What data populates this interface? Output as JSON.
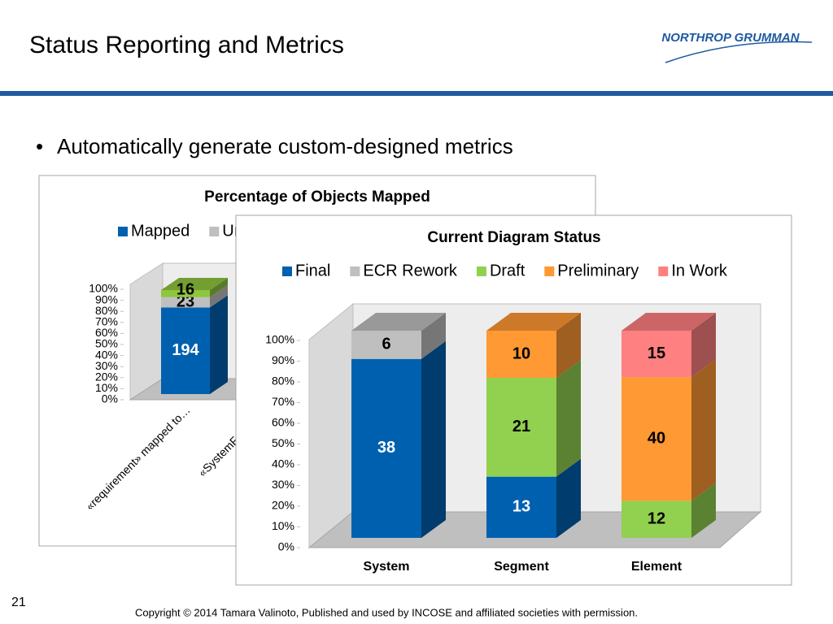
{
  "slide": {
    "title": "Status Reporting and Metrics",
    "bullet": "Automatically generate custom-designed metrics",
    "logo": "NORTHROP GRUMMAN",
    "page_number": "21",
    "footer": "Copyright © 2014 Tamara Valinoto, Published and used by INCOSE and affiliated societies with permission."
  },
  "chart_data": [
    {
      "type": "bar",
      "stacking": "percent",
      "three_d": true,
      "title": "Percentage of Objects Mapped",
      "categories": [
        "«requirement» mapped to…",
        "«SystemFunction»"
      ],
      "series": [
        {
          "name": "Mapped",
          "color": "#0060b0",
          "values": [
            194,
            null
          ]
        },
        {
          "name": "Unmapped",
          "color": "#bfbfbf",
          "values": [
            23,
            null
          ]
        },
        {
          "color": "#8ec63f",
          "values": [
            16,
            null
          ]
        }
      ],
      "ylim": [
        0,
        100
      ],
      "yticks": [
        {
          "value": 0,
          "label": "0%"
        },
        {
          "value": 10,
          "label": "10%"
        },
        {
          "value": 20,
          "label": "20%"
        },
        {
          "value": 30,
          "label": "30%"
        },
        {
          "value": 40,
          "label": "40%"
        },
        {
          "value": 50,
          "label": "50%"
        },
        {
          "value": 60,
          "label": "60%"
        },
        {
          "value": 70,
          "label": "70%"
        },
        {
          "value": 80,
          "label": "80%"
        },
        {
          "value": 90,
          "label": "90%"
        },
        {
          "value": 100,
          "label": "100%"
        }
      ]
    },
    {
      "type": "bar",
      "stacking": "percent",
      "three_d": true,
      "title": "Current Diagram Status",
      "categories": [
        "System",
        "Segment",
        "Element"
      ],
      "series": [
        {
          "name": "Final",
          "color": "#0060b0",
          "values": [
            38,
            13,
            null
          ]
        },
        {
          "name": "ECR Rework",
          "color": "#bfbfbf",
          "values": [
            6,
            null,
            null
          ]
        },
        {
          "name": "Draft",
          "color": "#92d050",
          "values": [
            null,
            21,
            12
          ]
        },
        {
          "name": "Preliminary",
          "color": "#ff9933",
          "values": [
            null,
            10,
            40
          ]
        },
        {
          "name": "In Work",
          "color": "#ff8080",
          "values": [
            null,
            null,
            15
          ]
        }
      ],
      "ylim": [
        0,
        100
      ],
      "yticks": [
        {
          "value": 0,
          "label": "0%"
        },
        {
          "value": 10,
          "label": "10%"
        },
        {
          "value": 20,
          "label": "20%"
        },
        {
          "value": 30,
          "label": "30%"
        },
        {
          "value": 40,
          "label": "40%"
        },
        {
          "value": 50,
          "label": "50%"
        },
        {
          "value": 60,
          "label": "60%"
        },
        {
          "value": 70,
          "label": "70%"
        },
        {
          "value": 80,
          "label": "80%"
        },
        {
          "value": 90,
          "label": "90%"
        },
        {
          "value": 100,
          "label": "100%"
        }
      ]
    }
  ]
}
